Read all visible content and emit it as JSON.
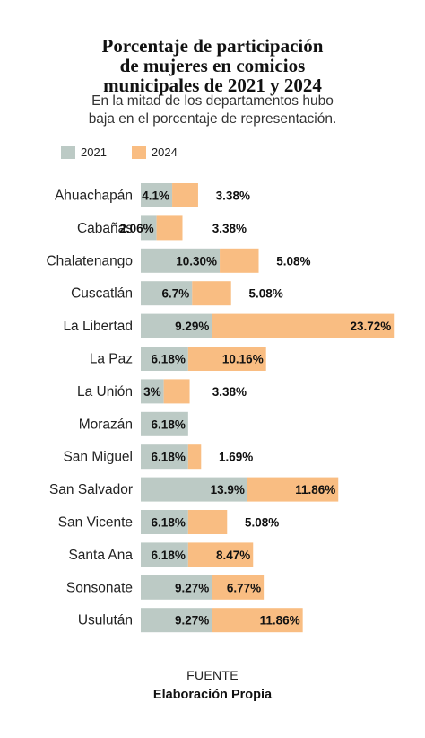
{
  "title_lines": [
    "Porcentaje de participación",
    "de mujeres en comicios",
    "municipales de 2021 y 2024"
  ],
  "subtitle_lines": [
    "En la mitad de los departamentos hubo",
    "baja en el porcentaje de representación."
  ],
  "source": {
    "label": "FUENTE",
    "value": "Elaboración Propia"
  },
  "colors": {
    "s2021": "#bccac5",
    "s2024": "#f9bd82"
  },
  "chart_data": {
    "type": "bar",
    "orientation": "horizontal",
    "stacked": true,
    "title": "Porcentaje de participación de mujeres en comicios municipales de 2021 y 2024",
    "subtitle": "En la mitad de los departamentos hubo baja en el porcentaje de representación.",
    "legend_position": "top-left",
    "grid": false,
    "categories": [
      "Ahuachapán",
      "Cabañas",
      "Chalatenango",
      "Cuscatlán",
      "La Libertad",
      "La Paz",
      "La Unión",
      "Morazán",
      "San Miguel",
      "San Salvador",
      "San Vicente",
      "Santa Ana",
      "Sonsonate",
      "Usulután"
    ],
    "series": [
      {
        "name": "2021",
        "values": [
          4.1,
          2.06,
          10.3,
          6.7,
          9.29,
          6.18,
          3,
          6.18,
          6.18,
          13.9,
          6.18,
          6.18,
          9.27,
          9.27
        ],
        "labels": [
          "4.1%",
          "2.06%",
          "10.30%",
          "6.7%",
          "9.29%",
          "6.18%",
          "3%",
          "6.18%",
          "6.18%",
          "13.9%",
          "6.18%",
          "6.18%",
          "9.27%",
          "9.27%"
        ]
      },
      {
        "name": "2024",
        "values": [
          3.38,
          3.38,
          5.08,
          5.08,
          23.72,
          10.16,
          3.38,
          0,
          1.69,
          11.86,
          5.08,
          8.47,
          6.77,
          11.86
        ],
        "labels": [
          "3.38%",
          "3.38%",
          "5.08%",
          "5.08%",
          "23.72%",
          "10.16%",
          "3.38%",
          "",
          "1.69%",
          "11.86%",
          "5.08%",
          "8.47%",
          "6.77%",
          "11.86%"
        ]
      }
    ]
  }
}
